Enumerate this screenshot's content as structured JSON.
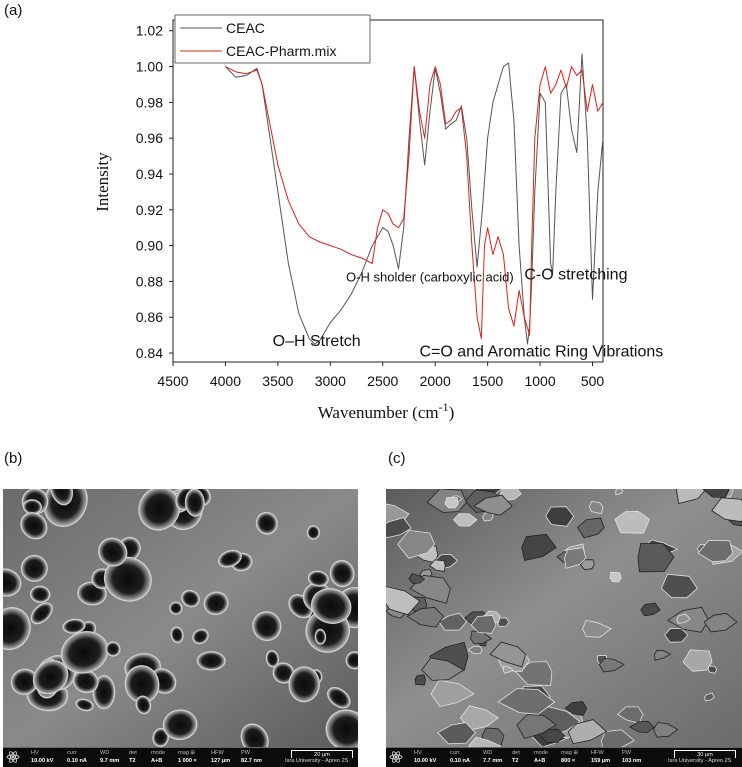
{
  "panels": {
    "a": "(a)",
    "b": "(b)",
    "c": "(c)"
  },
  "chart_data": {
    "type": "line",
    "xlabel": "Wavenumber (cm",
    "xlabel_sup": "-1",
    "xlabel_close": ")",
    "ylabel": "Intensity",
    "xlim": [
      4500,
      400
    ],
    "ylim": [
      0.835,
      1.026
    ],
    "x_ticks": [
      4500,
      4000,
      3500,
      3000,
      2500,
      2000,
      1500,
      1000,
      500
    ],
    "y_ticks": [
      0.84,
      0.86,
      0.88,
      0.9,
      0.92,
      0.94,
      0.96,
      0.98,
      1.0,
      1.02
    ],
    "y_tick_labels": [
      "0.84",
      "0.86",
      "0.88",
      "0.90",
      "0.92",
      "0.94",
      "0.96",
      "0.98",
      "1.00",
      "1.02"
    ],
    "legend_position": "top-left",
    "series": [
      {
        "name": "CEAC",
        "color": "#555555",
        "x": [
          4000,
          3900,
          3800,
          3700,
          3650,
          3600,
          3500,
          3400,
          3300,
          3200,
          3150,
          3100,
          3000,
          2900,
          2800,
          2700,
          2600,
          2500,
          2450,
          2400,
          2350,
          2300,
          2250,
          2200,
          2150,
          2100,
          2050,
          2000,
          1950,
          1900,
          1850,
          1800,
          1750,
          1700,
          1650,
          1600,
          1550,
          1500,
          1450,
          1400,
          1350,
          1300,
          1250,
          1200,
          1150,
          1120,
          1100,
          1080,
          1050,
          1000,
          950,
          900,
          880,
          850,
          800,
          750,
          700,
          650,
          600,
          550,
          500,
          450,
          400
        ],
        "values": [
          1.0,
          0.994,
          0.995,
          0.999,
          0.99,
          0.97,
          0.93,
          0.89,
          0.862,
          0.848,
          0.845,
          0.847,
          0.857,
          0.864,
          0.873,
          0.885,
          0.9,
          0.91,
          0.908,
          0.9,
          0.887,
          0.91,
          0.96,
          1.0,
          0.97,
          0.945,
          0.975,
          0.999,
          0.985,
          0.965,
          0.968,
          0.97,
          0.978,
          0.96,
          0.92,
          0.888,
          0.92,
          0.96,
          0.98,
          0.99,
          1.0,
          1.002,
          0.97,
          0.9,
          0.86,
          0.845,
          0.855,
          0.88,
          0.93,
          0.985,
          0.98,
          0.89,
          0.885,
          0.93,
          0.985,
          0.99,
          0.965,
          0.952,
          1.007,
          0.96,
          0.87,
          0.93,
          0.96
        ]
      },
      {
        "name": "CEAC-Pharm.mix",
        "color": "#e0201a",
        "x": [
          4000,
          3900,
          3800,
          3700,
          3650,
          3600,
          3500,
          3400,
          3300,
          3200,
          3100,
          3000,
          2900,
          2800,
          2700,
          2600,
          2550,
          2500,
          2450,
          2400,
          2350,
          2300,
          2250,
          2200,
          2150,
          2100,
          2050,
          2000,
          1950,
          1900,
          1850,
          1800,
          1750,
          1700,
          1650,
          1600,
          1560,
          1530,
          1500,
          1450,
          1400,
          1350,
          1300,
          1250,
          1200,
          1150,
          1100,
          1080,
          1050,
          1000,
          950,
          900,
          850,
          800,
          750,
          700,
          650,
          600,
          550,
          500,
          450,
          400
        ],
        "values": [
          1.0,
          0.997,
          0.996,
          0.998,
          0.99,
          0.975,
          0.945,
          0.925,
          0.912,
          0.905,
          0.902,
          0.9,
          0.898,
          0.895,
          0.893,
          0.89,
          0.91,
          0.92,
          0.918,
          0.912,
          0.91,
          0.915,
          0.95,
          1.0,
          0.975,
          0.96,
          0.99,
          1.0,
          0.99,
          0.968,
          0.97,
          0.975,
          0.977,
          0.95,
          0.9,
          0.86,
          0.848,
          0.9,
          0.91,
          0.895,
          0.905,
          0.895,
          0.865,
          0.855,
          0.875,
          0.86,
          0.85,
          0.9,
          0.96,
          0.99,
          1.0,
          0.985,
          0.99,
          0.998,
          0.988,
          1.0,
          0.995,
          0.998,
          0.975,
          0.99,
          0.975,
          0.98
        ]
      }
    ],
    "annotations": [
      {
        "text": "O–H Stretch",
        "x": 3550,
        "y": 0.844
      },
      {
        "text": "O-H sholder (carboxylic acid)",
        "x": 2850,
        "y": 0.88
      },
      {
        "text": "C-O stretching",
        "x": 1150,
        "y": 0.881
      },
      {
        "text": "C=O and Aromatic Ring Vibrations",
        "x": 2150,
        "y": 0.838
      }
    ]
  },
  "sem_b": {
    "headers": [
      "HV",
      "curr",
      "WD",
      "det",
      "mode",
      "mag ⊞",
      "HFW",
      "PW"
    ],
    "values": [
      "10.00 kV",
      "0.10 nA",
      "9.7 mm",
      "T2",
      "A+B",
      "1 000 ×",
      "127 µm",
      "82.7 nm"
    ],
    "scale": "20 µm",
    "institution": "Isra University - Apreo 2S"
  },
  "sem_c": {
    "headers": [
      "HV",
      "curr",
      "WD",
      "det",
      "mode",
      "mag ⊞",
      "HFW",
      "PW"
    ],
    "values": [
      "10.00 kV",
      "0.10 nA",
      "7.7 mm",
      "T2",
      "A+B",
      "800 ×",
      "159 µm",
      "103 nm"
    ],
    "scale": "30 µm",
    "institution": "Isra University - Apreo 2S"
  }
}
